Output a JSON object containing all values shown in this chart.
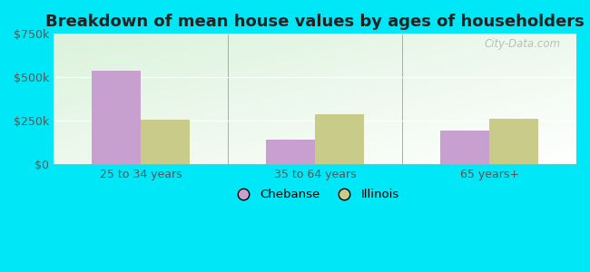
{
  "title": "Breakdown of mean house values by ages of householders",
  "categories": [
    "25 to 34 years",
    "35 to 64 years",
    "65 years+"
  ],
  "chebanse_values": [
    540000,
    145000,
    195000
  ],
  "illinois_values": [
    255000,
    290000,
    262000
  ],
  "chebanse_color": "#c8a0d0",
  "illinois_color": "#c8cc88",
  "ylim": [
    0,
    750000
  ],
  "yticks": [
    0,
    250000,
    500000,
    750000
  ],
  "ytick_labels": [
    "$0",
    "$250k",
    "$500k",
    "$750k"
  ],
  "legend_labels": [
    "Chebanse",
    "Illinois"
  ],
  "background_outer": "#00e8f8",
  "bar_width": 0.28,
  "title_fontsize": 13,
  "axis_fontsize": 9,
  "legend_fontsize": 9.5,
  "watermark": "City-Data.com"
}
